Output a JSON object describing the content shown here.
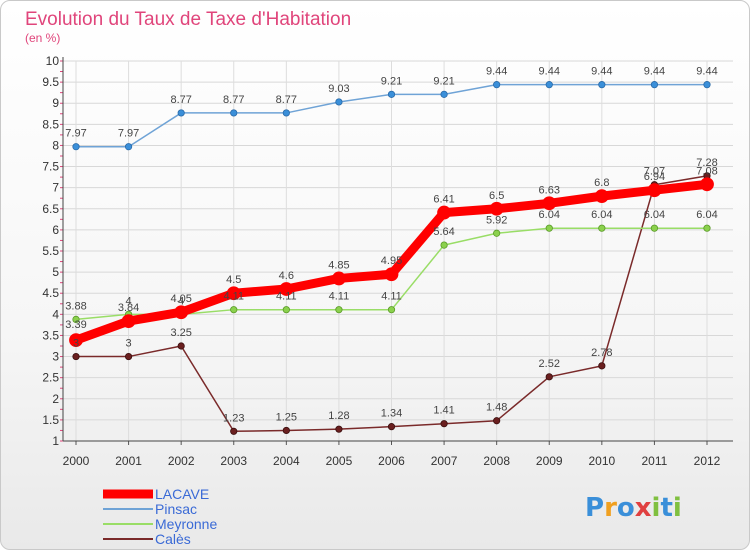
{
  "chart_data": {
    "type": "line",
    "title": "Evolution du Taux de Taxe d'Habitation",
    "subtitle": "(en %)",
    "ylim": [
      1,
      10
    ],
    "yticks": [
      "1",
      "1.5",
      "2",
      "2.5",
      "3",
      "3.5",
      "4",
      "4.5",
      "5",
      "5.5",
      "6",
      "6.5",
      "7",
      "7.5",
      "8",
      "8.5",
      "9",
      "9.5",
      "10"
    ],
    "x": [
      "2000",
      "2001",
      "2002",
      "2003",
      "2004",
      "2005",
      "2006",
      "2007",
      "2008",
      "2009",
      "2010",
      "2011",
      "2012"
    ],
    "grid": true,
    "legend_position": "bottom-left",
    "series": [
      {
        "name": "LACAVE",
        "color": "#ff0000",
        "values": [
          3.39,
          3.84,
          4.05,
          4.5,
          4.6,
          4.85,
          4.95,
          6.41,
          6.5,
          6.63,
          6.8,
          6.94,
          7.08
        ],
        "labels": [
          "3.39",
          "3.84",
          "4.05",
          "4.5",
          "4.6",
          "4.85",
          "4.95",
          "6.41",
          "6.5",
          "6.63",
          "6.8",
          "6.94",
          "7.08"
        ]
      },
      {
        "name": "Pinsac",
        "color": "#6fa3d6",
        "values": [
          7.97,
          7.97,
          8.77,
          8.77,
          8.77,
          9.03,
          9.21,
          9.21,
          9.44,
          9.44,
          9.44,
          9.44,
          9.44
        ],
        "labels": [
          "7.97",
          "7.97",
          "8.77",
          "8.77",
          "8.77",
          "9.03",
          "9.21",
          "9.21",
          "9.44",
          "9.44",
          "9.44",
          "9.44",
          "9.44"
        ]
      },
      {
        "name": "Meyronne",
        "color": "#99dd66",
        "values": [
          3.88,
          4,
          4,
          4.11,
          4.11,
          4.11,
          4.11,
          5.64,
          5.92,
          6.04,
          6.04,
          6.04,
          6.04
        ],
        "labels": [
          "3.88",
          "4",
          "4",
          "4.11",
          "4.11",
          "4.11",
          "4.11",
          "5.64",
          "5.92",
          "6.04",
          "6.04",
          "6.04",
          "6.04"
        ]
      },
      {
        "name": "Calès",
        "color": "#7a2a2a",
        "values": [
          3,
          3,
          3.25,
          1.23,
          1.25,
          1.28,
          1.34,
          1.41,
          1.48,
          2.52,
          2.78,
          7.07,
          7.28
        ],
        "labels": [
          "3",
          "3",
          "3.25",
          "1.23",
          "1.25",
          "1.28",
          "1.34",
          "1.41",
          "1.48",
          "2.52",
          "2.78",
          "7.07",
          "7.28"
        ]
      }
    ]
  },
  "watermark": {
    "letters": [
      "P",
      "r",
      "o",
      "x",
      "i",
      "t",
      "i"
    ],
    "colors": [
      "#3a8fd9",
      "#f0a020",
      "#3a8fd9",
      "#e04040",
      "#80c040",
      "#3a8fd9",
      "#80c040"
    ]
  }
}
